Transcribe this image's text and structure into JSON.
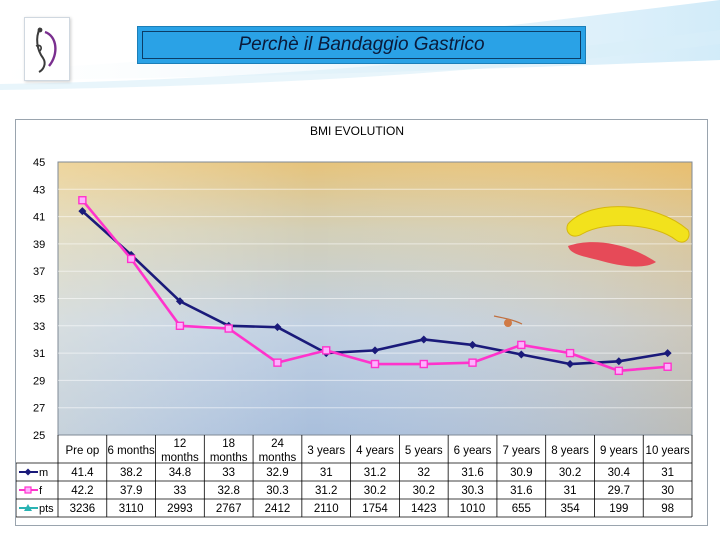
{
  "slide": {
    "title": "Perchè il Bandaggio Gastrico"
  },
  "chart_data": {
    "type": "line",
    "title": "BMI  EVOLUTION",
    "categories": [
      "Pre op",
      "6 months",
      "12 months",
      "18 months",
      "24 months",
      "3 years",
      "4 years",
      "5 years",
      "6 years",
      "7 years",
      "8 years",
      "9 years",
      "10 years"
    ],
    "ylim": [
      25,
      45
    ],
    "yticks": [
      "45",
      "43",
      "41",
      "39",
      "37",
      "35",
      "33",
      "31",
      "29",
      "27",
      "25"
    ],
    "grid": true,
    "series": [
      {
        "name": "m",
        "color": "#1a1a7a",
        "marker": "diamond",
        "values": [
          41.4,
          38.2,
          34.8,
          33,
          32.9,
          31,
          31.2,
          32,
          31.6,
          30.9,
          30.2,
          30.4,
          31
        ]
      },
      {
        "name": "f",
        "color": "#ff33cc",
        "marker": "square",
        "values": [
          42.2,
          37.9,
          33,
          32.8,
          30.3,
          31.2,
          30.2,
          30.2,
          30.3,
          31.6,
          31,
          29.7,
          30
        ]
      }
    ],
    "table_row": {
      "name": "pts",
      "color": "#2ab3b3",
      "values": [
        "3236",
        "3110",
        "2993",
        "2767",
        "2412",
        "2110",
        "1754",
        "1423",
        "1010",
        "655",
        "354",
        "199",
        "98"
      ]
    }
  }
}
